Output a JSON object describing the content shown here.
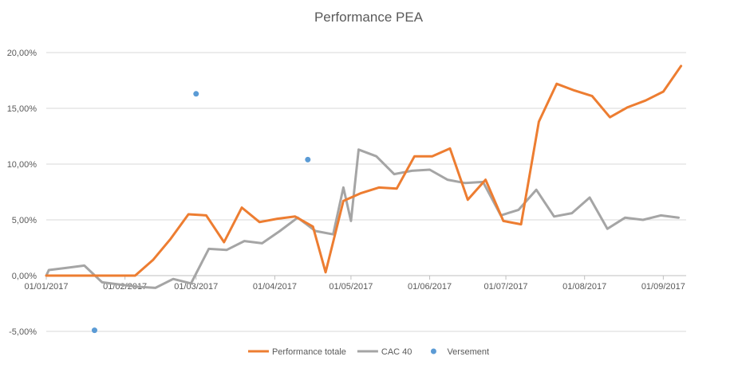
{
  "chart_data": {
    "type": "line",
    "title": "Performance PEA",
    "xlabel": "",
    "ylabel": "",
    "ylim": [
      -0.05,
      0.2
    ],
    "yticks": [
      -0.05,
      0,
      0.05,
      0.1,
      0.15,
      0.2
    ],
    "ytick_labels": [
      "-5,00%",
      "0,00%",
      "5,00%",
      "10,00%",
      "15,00%",
      "20,00%"
    ],
    "xlim": [
      "2017-01-01",
      "2017-09-10"
    ],
    "xticks": [
      "2017-01-01",
      "2017-02-01",
      "2017-03-01",
      "2017-04-01",
      "2017-05-01",
      "2017-06-01",
      "2017-07-01",
      "2017-08-01",
      "2017-09-01"
    ],
    "xtick_labels": [
      "01/01/2017",
      "01/02/2017",
      "01/03/2017",
      "01/04/2017",
      "01/05/2017",
      "01/06/2017",
      "01/07/2017",
      "01/08/2017",
      "01/09/2017"
    ],
    "grid": "horizontal",
    "legend": "bottom",
    "series": [
      {
        "name": "Performance totale",
        "kind": "line",
        "color": "#ed7d31",
        "points": [
          [
            "2017-01-01",
            0.0
          ],
          [
            "2017-01-08",
            0.0
          ],
          [
            "2017-01-15",
            0.0
          ],
          [
            "2017-01-22",
            0.0
          ],
          [
            "2017-01-29",
            0.0
          ],
          [
            "2017-02-05",
            0.0
          ],
          [
            "2017-02-12",
            0.014
          ],
          [
            "2017-02-19",
            0.033
          ],
          [
            "2017-02-26",
            0.055
          ],
          [
            "2017-03-05",
            0.054
          ],
          [
            "2017-03-12",
            0.03
          ],
          [
            "2017-03-19",
            0.061
          ],
          [
            "2017-03-26",
            0.048
          ],
          [
            "2017-04-02",
            0.051
          ],
          [
            "2017-04-09",
            0.053
          ],
          [
            "2017-04-16",
            0.044
          ],
          [
            "2017-04-21",
            0.003
          ],
          [
            "2017-04-28",
            0.067
          ],
          [
            "2017-05-05",
            0.074
          ],
          [
            "2017-05-12",
            0.079
          ],
          [
            "2017-05-19",
            0.078
          ],
          [
            "2017-05-26",
            0.107
          ],
          [
            "2017-06-02",
            0.107
          ],
          [
            "2017-06-09",
            0.114
          ],
          [
            "2017-06-16",
            0.068
          ],
          [
            "2017-06-23",
            0.086
          ],
          [
            "2017-06-30",
            0.049
          ],
          [
            "2017-07-07",
            0.046
          ],
          [
            "2017-07-14",
            0.138
          ],
          [
            "2017-07-21",
            0.172
          ],
          [
            "2017-07-28",
            0.166
          ],
          [
            "2017-08-04",
            0.161
          ],
          [
            "2017-08-11",
            0.142
          ],
          [
            "2017-08-18",
            0.151
          ],
          [
            "2017-08-25",
            0.157
          ],
          [
            "2017-09-01",
            0.165
          ],
          [
            "2017-09-08",
            0.188
          ]
        ]
      },
      {
        "name": "CAC 40",
        "kind": "line",
        "color": "#a5a5a5",
        "points": [
          [
            "2017-01-01",
            0.0
          ],
          [
            "2017-01-02",
            0.005
          ],
          [
            "2017-01-09",
            0.007
          ],
          [
            "2017-01-16",
            0.009
          ],
          [
            "2017-01-23",
            -0.006
          ],
          [
            "2017-01-30",
            -0.008
          ],
          [
            "2017-02-06",
            -0.01
          ],
          [
            "2017-02-13",
            -0.011
          ],
          [
            "2017-02-20",
            -0.003
          ],
          [
            "2017-02-27",
            -0.007
          ],
          [
            "2017-03-06",
            0.024
          ],
          [
            "2017-03-13",
            0.023
          ],
          [
            "2017-03-20",
            0.031
          ],
          [
            "2017-03-27",
            0.029
          ],
          [
            "2017-04-03",
            0.04
          ],
          [
            "2017-04-10",
            0.052
          ],
          [
            "2017-04-17",
            0.04
          ],
          [
            "2017-04-24",
            0.037
          ],
          [
            "2017-04-28",
            0.079
          ],
          [
            "2017-05-01",
            0.049
          ],
          [
            "2017-05-04",
            0.113
          ],
          [
            "2017-05-11",
            0.107
          ],
          [
            "2017-05-18",
            0.091
          ],
          [
            "2017-05-25",
            0.094
          ],
          [
            "2017-06-01",
            0.095
          ],
          [
            "2017-06-08",
            0.086
          ],
          [
            "2017-06-15",
            0.083
          ],
          [
            "2017-06-22",
            0.084
          ],
          [
            "2017-06-29",
            0.054
          ],
          [
            "2017-07-06",
            0.059
          ],
          [
            "2017-07-13",
            0.077
          ],
          [
            "2017-07-20",
            0.053
          ],
          [
            "2017-07-27",
            0.056
          ],
          [
            "2017-08-03",
            0.07
          ],
          [
            "2017-08-10",
            0.042
          ],
          [
            "2017-08-17",
            0.052
          ],
          [
            "2017-08-24",
            0.05
          ],
          [
            "2017-08-31",
            0.054
          ],
          [
            "2017-09-07",
            0.052
          ]
        ]
      },
      {
        "name": "Versement",
        "kind": "scatter",
        "color": "#5b9bd5",
        "points": [
          [
            "2017-01-20",
            -0.049
          ],
          [
            "2017-03-01",
            0.163
          ],
          [
            "2017-04-14",
            0.104
          ]
        ]
      }
    ]
  }
}
